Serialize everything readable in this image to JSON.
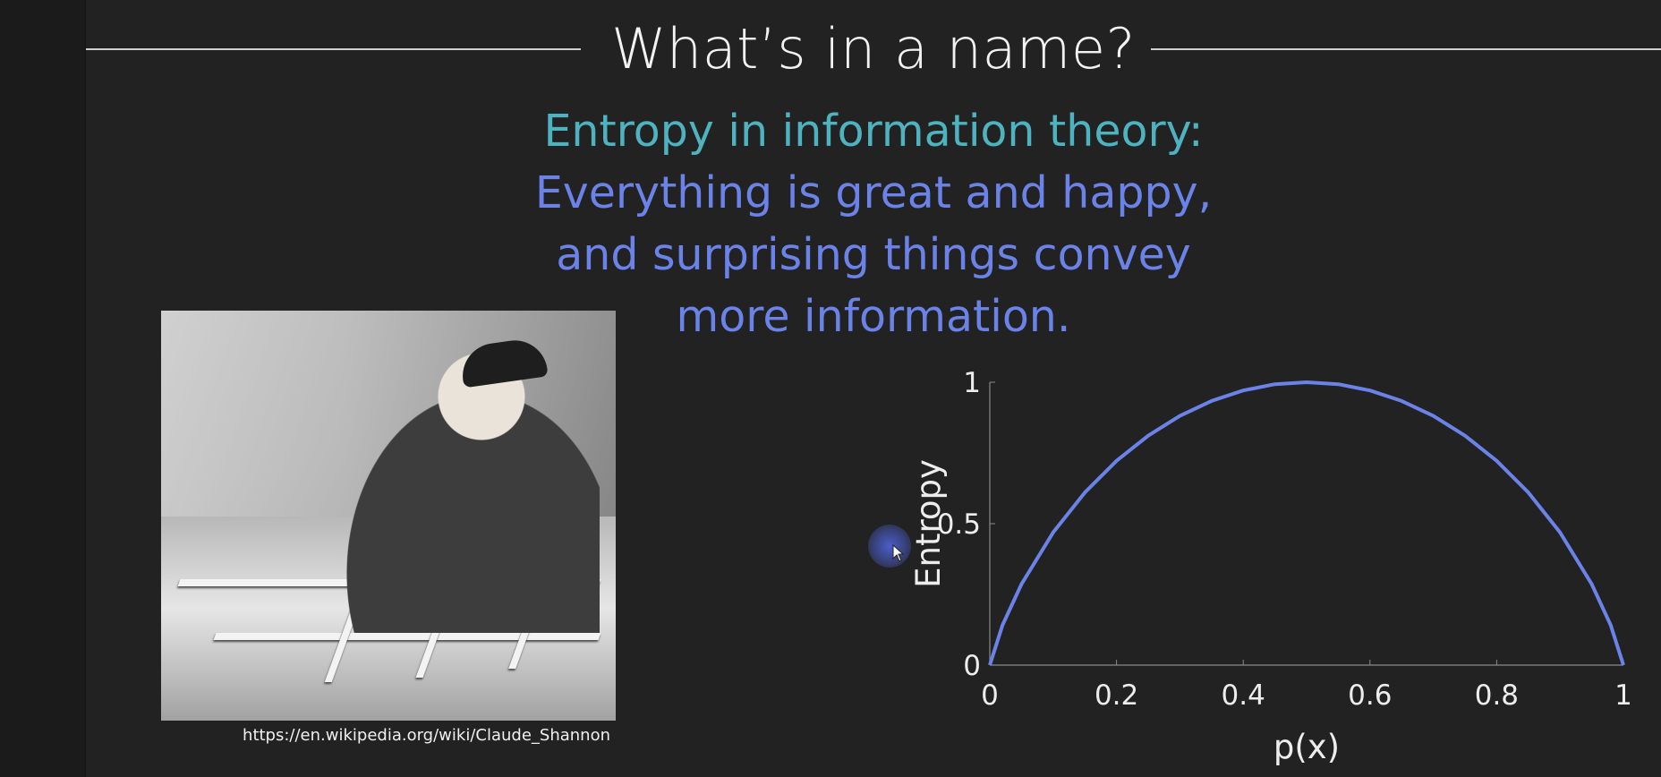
{
  "slide": {
    "title": "What’s in a name?",
    "subtitle_line1": "Entropy in information theory:",
    "subtitle_line2": "Everything is great and happy,",
    "subtitle_line3": "and surprising things convey",
    "subtitle_line4": "more information.",
    "photo_source": "https://en.wikipedia.org/wiki/Claude_Shannon",
    "colors": {
      "title": "#f2f2f2",
      "subtitle_accent": "#4fb3bf",
      "subtitle_main": "#6b83e8",
      "curve": "#6b83e8"
    }
  },
  "chart_data": {
    "type": "line",
    "title": "",
    "xlabel": "p(x)",
    "ylabel": "Entropy",
    "xlim": [
      0,
      1
    ],
    "ylim": [
      0,
      1
    ],
    "xticks": [
      "0",
      "0.2",
      "0.4",
      "0.6",
      "0.8",
      "1"
    ],
    "yticks": [
      "0",
      "0.5",
      "1"
    ],
    "grid": false,
    "legend": "none",
    "series": [
      {
        "x": [
          0,
          0.02,
          0.05,
          0.1,
          0.15,
          0.2,
          0.25,
          0.3,
          0.35,
          0.4,
          0.45,
          0.5,
          0.55,
          0.6,
          0.65,
          0.7,
          0.75,
          0.8,
          0.85,
          0.9,
          0.95,
          0.98,
          1
        ],
        "values": [
          0,
          0.141,
          0.286,
          0.469,
          0.61,
          0.722,
          0.811,
          0.881,
          0.934,
          0.971,
          0.993,
          1,
          0.993,
          0.971,
          0.934,
          0.881,
          0.811,
          0.722,
          0.61,
          0.469,
          0.286,
          0.141,
          0
        ]
      }
    ]
  }
}
